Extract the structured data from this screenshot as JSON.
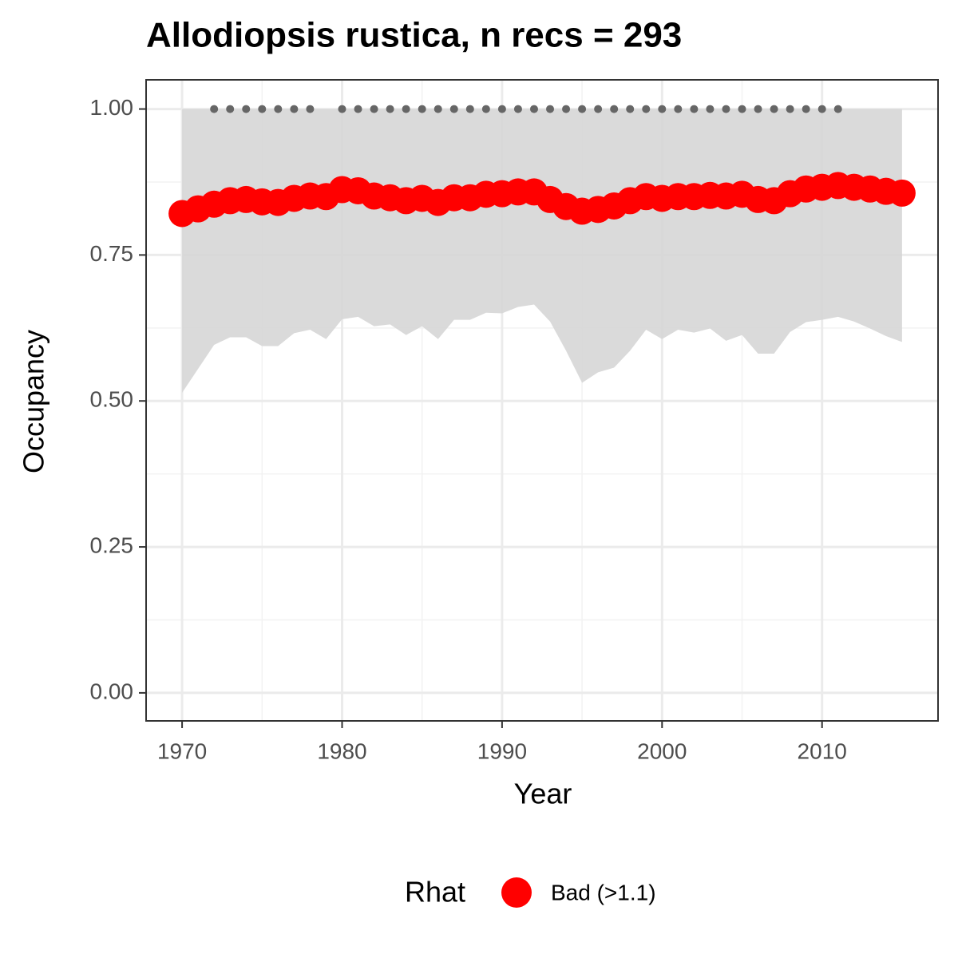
{
  "chart_data": {
    "type": "line",
    "title": "Allodiopsis rustica, n recs = 293",
    "x_label": "Year",
    "y_label": "Occupancy",
    "x": [
      1970,
      1971,
      1972,
      1973,
      1974,
      1975,
      1976,
      1977,
      1978,
      1979,
      1980,
      1981,
      1982,
      1983,
      1984,
      1985,
      1986,
      1987,
      1988,
      1989,
      1990,
      1991,
      1992,
      1993,
      1994,
      1995,
      1996,
      1997,
      1998,
      1999,
      2000,
      2001,
      2002,
      2003,
      2004,
      2005,
      2006,
      2007,
      2008,
      2009,
      2010,
      2011,
      2012,
      2013,
      2014,
      2015
    ],
    "series": [
      {
        "name": "Bad (>1.1)",
        "color": "#ff0000",
        "values": [
          0.821,
          0.829,
          0.837,
          0.843,
          0.845,
          0.841,
          0.84,
          0.847,
          0.851,
          0.85,
          0.862,
          0.86,
          0.851,
          0.848,
          0.843,
          0.847,
          0.84,
          0.848,
          0.848,
          0.854,
          0.855,
          0.858,
          0.858,
          0.845,
          0.833,
          0.825,
          0.828,
          0.834,
          0.843,
          0.85,
          0.847,
          0.85,
          0.85,
          0.852,
          0.851,
          0.854,
          0.845,
          0.843,
          0.855,
          0.863,
          0.866,
          0.869,
          0.866,
          0.863,
          0.859,
          0.856
        ]
      }
    ],
    "ribbon": {
      "color": "#d6d6d6",
      "upper": [
        1,
        1,
        1,
        1,
        1,
        1,
        1,
        1,
        1,
        1,
        1,
        1,
        1,
        1,
        1,
        1,
        1,
        1,
        1,
        1,
        1,
        1,
        1,
        1,
        1,
        1,
        1,
        1,
        1,
        1,
        1,
        1,
        1,
        1,
        1,
        1,
        1,
        1,
        1,
        1,
        1,
        1,
        1,
        1,
        1,
        1
      ],
      "lower": [
        0.514,
        0.555,
        0.596,
        0.609,
        0.609,
        0.594,
        0.594,
        0.616,
        0.622,
        0.606,
        0.64,
        0.644,
        0.628,
        0.631,
        0.613,
        0.628,
        0.606,
        0.639,
        0.639,
        0.651,
        0.65,
        0.661,
        0.665,
        0.636,
        0.586,
        0.531,
        0.549,
        0.557,
        0.586,
        0.622,
        0.606,
        0.622,
        0.617,
        0.624,
        0.603,
        0.613,
        0.581,
        0.581,
        0.618,
        0.635,
        0.639,
        0.644,
        0.636,
        0.624,
        0.611,
        0.601
      ]
    },
    "points": {
      "color": "#666666",
      "x": [
        1972,
        1973,
        1974,
        1975,
        1976,
        1977,
        1978,
        1980,
        1981,
        1982,
        1983,
        1984,
        1985,
        1986,
        1987,
        1988,
        1989,
        1990,
        1991,
        1992,
        1993,
        1994,
        1995,
        1996,
        1997,
        1998,
        1999,
        2000,
        2001,
        2002,
        2003,
        2004,
        2005,
        2006,
        2007,
        2008,
        2009,
        2010,
        2011
      ],
      "values": [
        1,
        1,
        1,
        1,
        1,
        1,
        1,
        1,
        1,
        1,
        1,
        1,
        1,
        1,
        1,
        1,
        1,
        1,
        1,
        1,
        1,
        1,
        1,
        1,
        1,
        1,
        1,
        1,
        1,
        1,
        1,
        1,
        1,
        1,
        1,
        1,
        1,
        1,
        1
      ]
    },
    "xlim": [
      1967.75,
      2017.25
    ],
    "xticks": [
      1970,
      1980,
      1990,
      2000,
      2010
    ],
    "ylim": [
      -0.048,
      1.05
    ],
    "yticks": [
      {
        "value": 0,
        "label": "0.00"
      },
      {
        "value": 0.25,
        "label": "0.25"
      },
      {
        "value": 0.5,
        "label": "0.50"
      },
      {
        "value": 0.75,
        "label": "0.75"
      },
      {
        "value": 1,
        "label": "1.00"
      }
    ],
    "grid": true,
    "legend_title": "Rhat",
    "legend_position": "bottom"
  }
}
